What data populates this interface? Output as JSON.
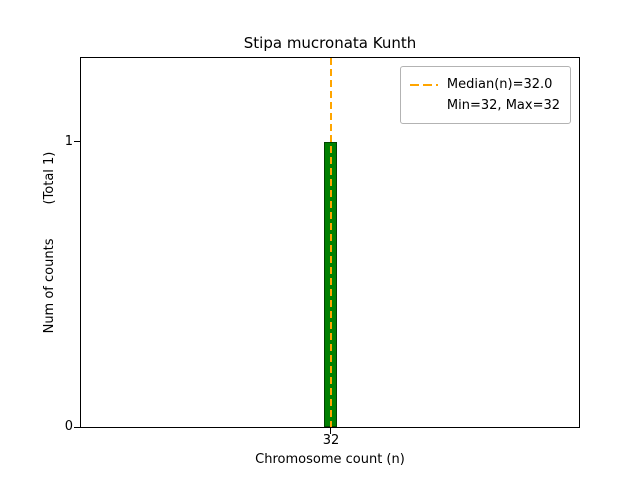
{
  "figure": {
    "title": "Stipa mucronata Kunth",
    "xlabel": "Chromosome count (n)",
    "ylabel": "Num of counts",
    "ylabel_secondary": "(Total 1)",
    "xticks": [
      "32"
    ],
    "yticks": [
      "0",
      "1"
    ],
    "legend": {
      "line1": "Median(n)=32.0",
      "line2": "Min=32, Max=32"
    }
  },
  "chart_data": {
    "type": "bar",
    "categories": [
      32
    ],
    "values": [
      1
    ],
    "title": "Stipa mucronata Kunth",
    "xlabel": "Chromosome count (n)",
    "ylabel": "Num of counts",
    "ylabel_note": "(Total 1)",
    "total": 1,
    "median": 32.0,
    "min": 32,
    "max": 32,
    "xticks": [
      32
    ],
    "yticks": [
      0,
      1
    ],
    "ylim": [
      0,
      1.3
    ],
    "grid": false,
    "legend": [
      "Median(n)=32.0",
      "Min=32, Max=32"
    ],
    "legend_position": "upper right",
    "bar_color_hex": "#008000",
    "bar_edge_hex": "#004400",
    "median_line_hex": "#FFA500",
    "median_line_style": "dashed"
  }
}
